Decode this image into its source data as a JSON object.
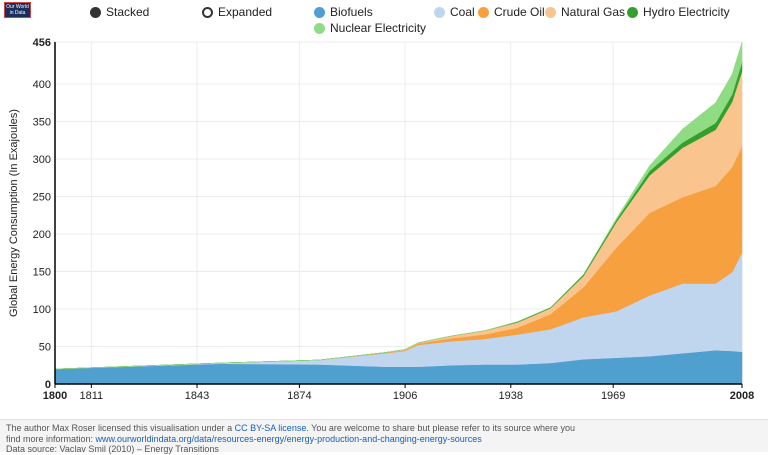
{
  "logo": {
    "line1": "Our World",
    "line2": "in Data"
  },
  "modes": [
    {
      "label": "Stacked",
      "selected": true
    },
    {
      "label": "Expanded",
      "selected": false
    }
  ],
  "chart_data": {
    "type": "area",
    "stacked": true,
    "ylabel": "Global Energy Consumption (In Exajoules)",
    "xlabel": "",
    "x": [
      1800,
      1850,
      1880,
      1900,
      1906,
      1910,
      1920,
      1930,
      1940,
      1950,
      1960,
      1970,
      1980,
      1990,
      2000,
      2005,
      2008
    ],
    "xlim": [
      1800,
      2008
    ],
    "ylim": [
      0,
      456
    ],
    "x_ticks": [
      1800,
      1811,
      1843,
      1874,
      1906,
      1938,
      1969,
      2008
    ],
    "y_ticks": [
      0,
      50,
      100,
      150,
      200,
      250,
      300,
      350,
      400,
      456
    ],
    "grid": true,
    "legend_position": "top",
    "series": [
      {
        "name": "Biofuels",
        "color": "#4f9fcf",
        "values": [
          20,
          27,
          26,
          23,
          23,
          23,
          25,
          26,
          26,
          28,
          33,
          35,
          37,
          41,
          45,
          44,
          43
        ]
      },
      {
        "name": "Coal",
        "color": "#c0d6ee",
        "values": [
          0,
          1,
          6,
          18,
          21,
          29,
          32,
          34,
          40,
          45,
          56,
          62,
          81,
          93,
          89,
          105,
          132
        ]
      },
      {
        "name": "Crude Oil",
        "color": "#f7a03f",
        "values": [
          0,
          0,
          0,
          1,
          1,
          2,
          4,
          6,
          9,
          20,
          40,
          85,
          110,
          115,
          130,
          140,
          142
        ]
      },
      {
        "name": "Natural Gas",
        "color": "#fac48e",
        "values": [
          0,
          0,
          0,
          0,
          1,
          1,
          3,
          5,
          7,
          8,
          15,
          34,
          50,
          66,
          75,
          87,
          100
        ]
      },
      {
        "name": "Hydro Electricity",
        "color": "#33a02c",
        "values": [
          0,
          0,
          0,
          0,
          0,
          0,
          0,
          0,
          1,
          1,
          2,
          3,
          6,
          7,
          9,
          10,
          12
        ]
      },
      {
        "name": "Nuclear Electricity",
        "color": "#8fdc84",
        "values": [
          0,
          0,
          0,
          0,
          0,
          0,
          0,
          0,
          0,
          0,
          0,
          2,
          7,
          18,
          27,
          27,
          27
        ]
      }
    ]
  },
  "footer": {
    "line1_a": "The author Max Roser licensed this visualisation under a ",
    "license_link": "CC BY-SA license",
    "line1_b": ". You are welcome to share but please refer to its source where you",
    "line2_a": "find more information: ",
    "source_link": "www.ourworldindata.org/data/resources-energy/energy-production-and-changing-energy-sources",
    "line3": "Data source: Vaclav Smil (2010) – Energy Transitions"
  }
}
